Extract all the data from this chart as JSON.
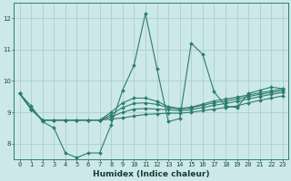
{
  "title": "",
  "xlabel": "Humidex (Indice chaleur)",
  "ylabel": "",
  "background_color": "#cce8e8",
  "line_color": "#2d7d6e",
  "grid_color": "#aacfcf",
  "xlim": [
    -0.5,
    23.5
  ],
  "ylim": [
    7.5,
    12.5
  ],
  "xticks": [
    0,
    1,
    2,
    3,
    4,
    5,
    6,
    7,
    8,
    9,
    10,
    11,
    12,
    13,
    14,
    15,
    16,
    17,
    18,
    19,
    20,
    21,
    22,
    23
  ],
  "yticks": [
    8,
    9,
    10,
    11,
    12
  ],
  "series": [
    {
      "x": [
        0,
        1,
        2,
        3,
        4,
        5,
        6,
        7,
        8,
        9,
        10,
        11,
        12,
        13,
        14,
        15,
        16,
        17,
        18,
        19,
        20,
        21,
        22,
        23
      ],
      "y": [
        9.6,
        9.2,
        8.7,
        8.5,
        7.7,
        7.55,
        7.7,
        7.7,
        8.6,
        9.7,
        10.5,
        12.15,
        10.4,
        8.7,
        8.8,
        11.2,
        10.85,
        9.65,
        9.2,
        9.15,
        9.6,
        9.7,
        9.8,
        9.75
      ]
    },
    {
      "x": [
        0,
        1,
        2,
        3,
        4,
        5,
        6,
        7,
        8,
        9,
        10,
        11,
        12,
        13,
        14,
        15,
        16,
        17,
        18,
        19,
        20,
        21,
        22,
        23
      ],
      "y": [
        9.6,
        9.1,
        8.75,
        8.75,
        8.75,
        8.75,
        8.75,
        8.75,
        8.78,
        8.82,
        8.88,
        8.93,
        8.95,
        8.97,
        8.97,
        9.0,
        9.05,
        9.1,
        9.15,
        9.2,
        9.3,
        9.38,
        9.45,
        9.52
      ]
    },
    {
      "x": [
        0,
        1,
        2,
        3,
        4,
        5,
        6,
        7,
        8,
        9,
        10,
        11,
        12,
        13,
        14,
        15,
        16,
        17,
        18,
        19,
        20,
        21,
        22,
        23
      ],
      "y": [
        9.6,
        9.1,
        8.75,
        8.75,
        8.75,
        8.75,
        8.75,
        8.75,
        8.85,
        9.0,
        9.1,
        9.12,
        9.1,
        9.08,
        9.05,
        9.08,
        9.15,
        9.22,
        9.28,
        9.35,
        9.42,
        9.5,
        9.57,
        9.63
      ]
    },
    {
      "x": [
        0,
        1,
        2,
        3,
        4,
        5,
        6,
        7,
        8,
        9,
        10,
        11,
        12,
        13,
        14,
        15,
        16,
        17,
        18,
        19,
        20,
        21,
        22,
        23
      ],
      "y": [
        9.6,
        9.1,
        8.75,
        8.75,
        8.75,
        8.75,
        8.75,
        8.75,
        8.92,
        9.15,
        9.28,
        9.3,
        9.25,
        9.15,
        9.1,
        9.14,
        9.22,
        9.3,
        9.36,
        9.42,
        9.5,
        9.57,
        9.63,
        9.69
      ]
    },
    {
      "x": [
        0,
        1,
        2,
        3,
        4,
        5,
        6,
        7,
        8,
        9,
        10,
        11,
        12,
        13,
        14,
        15,
        16,
        17,
        18,
        19,
        20,
        21,
        22,
        23
      ],
      "y": [
        9.6,
        9.1,
        8.75,
        8.75,
        8.75,
        8.75,
        8.75,
        8.75,
        9.0,
        9.3,
        9.45,
        9.45,
        9.35,
        9.18,
        9.12,
        9.16,
        9.26,
        9.36,
        9.42,
        9.48,
        9.55,
        9.62,
        9.68,
        9.74
      ]
    }
  ]
}
